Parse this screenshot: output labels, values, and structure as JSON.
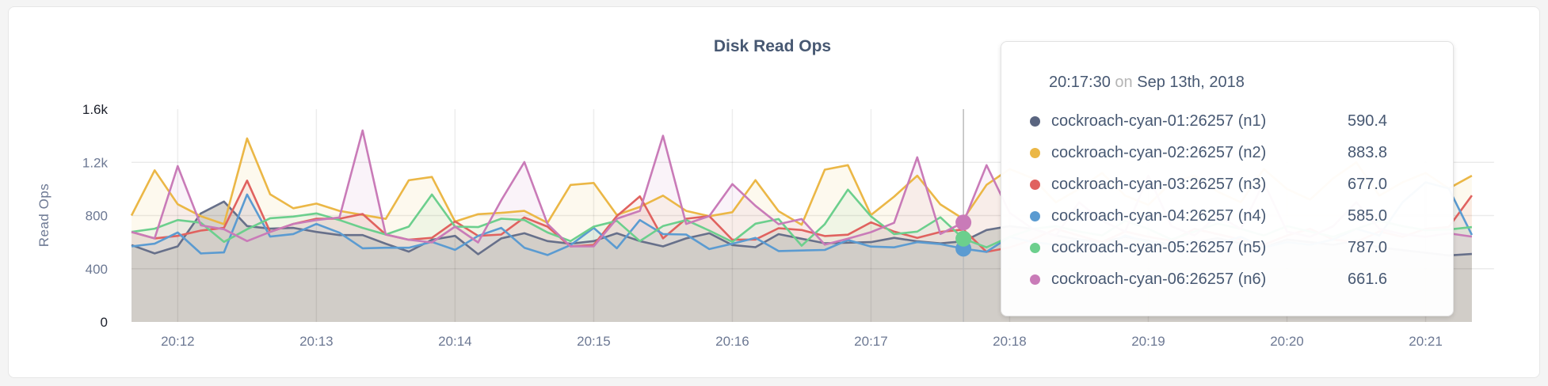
{
  "chart_data": {
    "type": "area",
    "title": "Disk Read Ops",
    "ylabel": "Read Ops",
    "xlabel": "",
    "ylim": [
      0,
      1600
    ],
    "y_ticks": [
      "0",
      "400",
      "800",
      "1.2k",
      "1.6k"
    ],
    "y_tick_values": [
      0,
      400,
      800,
      1200,
      1600
    ],
    "x_ticks": [
      "20:12",
      "20:13",
      "20:14",
      "20:15",
      "20:16",
      "20:17",
      "20:18",
      "20:19",
      "20:20",
      "20:21"
    ],
    "x_start": "20:11:40",
    "x_interval_seconds": 10,
    "grid": true,
    "series": [
      {
        "name": "cockroach-cyan-01:26257 (n1)",
        "color": "#67708a",
        "values": [
          578,
          515,
          568,
          816,
          905,
          721,
          701,
          707,
          677,
          653,
          653,
          588,
          529,
          618,
          647,
          509,
          628,
          667,
          608,
          588,
          608,
          667,
          608,
          568,
          628,
          667,
          578,
          562,
          660,
          626,
          592,
          596,
          600,
          632,
          606,
          590.4,
          606,
          691,
          720,
          700,
          650,
          620,
          600,
          640,
          610,
          580,
          600,
          630,
          590,
          560,
          620,
          600,
          580,
          610,
          560,
          540,
          520,
          500,
          511
        ]
      },
      {
        "name": "cockroach-cyan-02:26257 (n2)",
        "color": "#ebb746",
        "values": [
          800,
          1140,
          885,
          795,
          735,
          1380,
          960,
          855,
          890,
          835,
          805,
          775,
          1065,
          1090,
          755,
          810,
          820,
          835,
          745,
          1030,
          1045,
          805,
          865,
          950,
          835,
          795,
          825,
          1066,
          833,
          731,
          1145,
          1179,
          804,
          942,
          1100,
          883.8,
          774,
          1031,
          1150,
          1080,
          900,
          1000,
          1120,
          950,
          880,
          1050,
          1100,
          980,
          900,
          1150,
          1000,
          920,
          1080,
          1200,
          950,
          1050,
          1120,
          1004,
          1100
        ]
      },
      {
        "name": "cockroach-cyan-03:26257 (n3)",
        "color": "#e0625f",
        "values": [
          677,
          628,
          647,
          687,
          707,
          1063,
          677,
          737,
          776,
          776,
          812,
          657,
          618,
          632,
          756,
          647,
          657,
          786,
          717,
          568,
          578,
          796,
          944,
          628,
          776,
          796,
          618,
          620,
          705,
          691,
          646,
          656,
          749,
          679,
          632,
          677.0,
          695,
          527,
          560,
          620,
          700,
          650,
          600,
          680,
          640,
          610,
          700,
          660,
          620,
          580,
          650,
          700,
          620,
          600,
          680,
          640,
          700,
          713,
          951
        ]
      },
      {
        "name": "cockroach-cyan-04:26257 (n4)",
        "color": "#5b9bd1",
        "values": [
          568,
          588,
          673,
          515,
          523,
          958,
          642,
          661,
          737,
          671,
          554,
          558,
          558,
          602,
          542,
          647,
          707,
          558,
          503,
          578,
          707,
          554,
          766,
          661,
          657,
          548,
          588,
          632,
          533,
          537,
          541,
          616,
          567,
          561,
          600,
          585.0,
          551,
          527,
          640,
          600,
          580,
          620,
          560,
          650,
          600,
          570,
          610,
          590,
          640,
          560,
          600,
          580,
          620,
          700,
          650,
          900,
          1050,
          1004,
          654
        ]
      },
      {
        "name": "cockroach-cyan-05:26257 (n5)",
        "color": "#6ccf8d",
        "values": [
          677,
          701,
          766,
          746,
          602,
          697,
          780,
          792,
          816,
          766,
          707,
          657,
          717,
          958,
          717,
          713,
          776,
          766,
          673,
          608,
          717,
          760,
          608,
          721,
          766,
          687,
          602,
          739,
          774,
          573,
          735,
          995,
          794,
          660,
          679,
          787.0,
          626,
          561,
          640,
          700,
          720,
          680,
          650,
          760,
          700,
          620,
          680,
          740,
          700,
          650,
          720,
          680,
          640,
          700,
          760,
          720,
          690,
          695,
          713
        ]
      },
      {
        "name": "cockroach-cyan-06:26257 (n6)",
        "color": "#c97bb8",
        "values": [
          677,
          628,
          1172,
          727,
          697,
          608,
          677,
          737,
          766,
          786,
          1440,
          657,
          618,
          598,
          717,
          598,
          915,
          1202,
          737,
          568,
          568,
          776,
          835,
          1400,
          737,
          796,
          1037,
          873,
          735,
          774,
          581,
          626,
          675,
          745,
          1238,
          661.6,
          748,
          1179,
          820,
          700,
          650,
          900,
          760,
          680,
          1100,
          720,
          650,
          800,
          700,
          1050,
          680,
          640,
          720,
          900,
          700,
          660,
          640,
          666,
          642
        ]
      }
    ]
  },
  "tooltip": {
    "time": "20:17:30",
    "on": "on",
    "date": "Sep 13th, 2018",
    "rows": [
      {
        "name": "cockroach-cyan-01:26257 (n1)",
        "value": "590.4",
        "color": "#5a6580"
      },
      {
        "name": "cockroach-cyan-02:26257 (n2)",
        "value": "883.8",
        "color": "#ebb746"
      },
      {
        "name": "cockroach-cyan-03:26257 (n3)",
        "value": "677.0",
        "color": "#e0625f"
      },
      {
        "name": "cockroach-cyan-04:26257 (n4)",
        "value": "585.0",
        "color": "#5b9bd1"
      },
      {
        "name": "cockroach-cyan-05:26257 (n5)",
        "value": "787.0",
        "color": "#6ccf8d"
      },
      {
        "name": "cockroach-cyan-06:26257 (n6)",
        "value": "661.6",
        "color": "#c97bb8"
      }
    ]
  }
}
